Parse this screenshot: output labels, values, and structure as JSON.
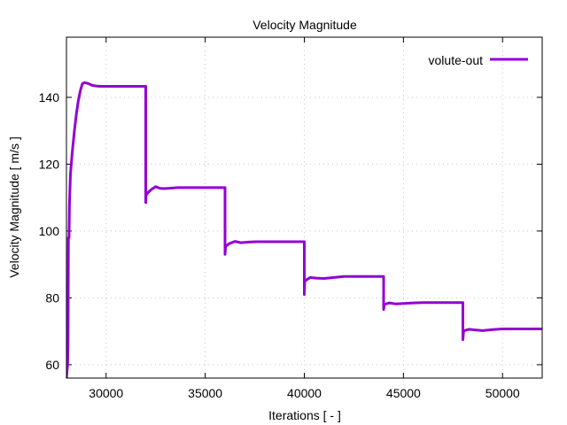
{
  "chart_data": {
    "type": "line",
    "title": "Velocity Magnitude",
    "xlabel": "Iterations [ - ]",
    "ylabel": "Velocity Magnitude [ m/s ]",
    "xlim": [
      28000,
      52000
    ],
    "ylim": [
      56,
      158
    ],
    "xticks": [
      30000,
      35000,
      40000,
      45000,
      50000
    ],
    "yticks": [
      60,
      80,
      100,
      120,
      140
    ],
    "grid": true,
    "legend_position": "top-right",
    "series": [
      {
        "name": "volute-out",
        "color": "#9400d3",
        "x": [
          28000,
          28060,
          28080,
          28100,
          28130,
          28150,
          28200,
          28300,
          28400,
          28500,
          28600,
          28700,
          28800,
          28900,
          29000,
          29150,
          29300,
          29500,
          29700,
          30000,
          31000,
          32000,
          32000,
          32020,
          32060,
          32100,
          32300,
          32500,
          32700,
          32900,
          33200,
          33600,
          34000,
          35000,
          36000,
          36000,
          36030,
          36070,
          36200,
          36500,
          36800,
          37200,
          37600,
          38000,
          39000,
          40000,
          40000,
          40020,
          40060,
          40300,
          40600,
          41000,
          41500,
          42000,
          43000,
          44000,
          44000,
          44030,
          44070,
          44300,
          44600,
          45000,
          45500,
          46000,
          47000,
          48000,
          48000,
          48030,
          48070,
          48300,
          48600,
          49000,
          49500,
          50000,
          51000,
          52000
        ],
        "y": [
          56,
          60,
          67,
          98,
          98,
          108,
          117,
          124,
          130,
          135,
          139,
          142,
          144,
          144.4,
          144.3,
          144,
          143.6,
          143.4,
          143.3,
          143.3,
          143.3,
          143.3,
          108.5,
          111,
          111,
          111.4,
          112.5,
          113.3,
          112.8,
          112.7,
          112.8,
          113,
          113,
          113,
          113,
          93,
          95.5,
          95.6,
          96.2,
          96.9,
          96.5,
          96.7,
          96.8,
          96.8,
          96.8,
          96.8,
          81,
          84.8,
          85.2,
          86.1,
          85.9,
          85.8,
          86.1,
          86.4,
          86.4,
          86.4,
          76.5,
          78,
          78.1,
          78.5,
          78.2,
          78.3,
          78.5,
          78.6,
          78.6,
          78.6,
          67.5,
          69.8,
          70.2,
          70.6,
          70.4,
          70.2,
          70.5,
          70.7,
          70.7,
          70.7
        ]
      }
    ]
  }
}
